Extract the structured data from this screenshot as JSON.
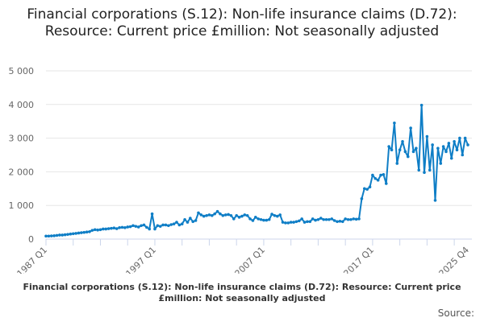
{
  "chart_data": {
    "type": "line",
    "title": "Financial corporations (S.12): Non-life insurance claims (D.72): Resource: Current price £million: Not seasonally adjusted",
    "xlabel": "Financial corporations (S.12): Non-life insurance claims (D.72): Resource: Current price £million: Not seasonally adjusted",
    "source_label": "Source:",
    "start_year": 1987,
    "x_tick_labels": [
      "1987 Q1",
      "1997 Q1",
      "2007 Q1",
      "2017 Q1",
      "2025 Q4"
    ],
    "y_ticks": [
      0,
      1000,
      2000,
      3000,
      4000,
      5000
    ],
    "y_tick_labels": [
      "0",
      "1 000",
      "2 000",
      "3 000",
      "4 000",
      "5 000"
    ],
    "ylim": [
      0,
      5000
    ],
    "grid": true,
    "color": "#0f7ec6",
    "values": [
      90,
      90,
      95,
      100,
      110,
      120,
      120,
      130,
      140,
      150,
      160,
      170,
      180,
      190,
      200,
      210,
      220,
      260,
      280,
      270,
      280,
      300,
      300,
      310,
      320,
      330,
      310,
      340,
      350,
      340,
      360,
      370,
      400,
      380,
      360,
      400,
      420,
      350,
      300,
      750,
      300,
      400,
      380,
      420,
      420,
      400,
      430,
      450,
      500,
      420,
      450,
      580,
      500,
      620,
      520,
      550,
      780,
      720,
      680,
      700,
      720,
      700,
      750,
      820,
      750,
      700,
      720,
      730,
      700,
      600,
      700,
      650,
      680,
      720,
      700,
      600,
      550,
      650,
      600,
      580,
      560,
      560,
      580,
      740,
      700,
      680,
      720,
      500,
      480,
      480,
      500,
      500,
      520,
      540,
      600,
      500,
      520,
      520,
      600,
      560,
      580,
      620,
      580,
      580,
      580,
      600,
      550,
      520,
      530,
      520,
      600,
      580,
      580,
      600,
      590,
      600,
      1200,
      1500,
      1480,
      1550,
      1900,
      1800,
      1750,
      1900,
      1920,
      1650,
      2750,
      2650,
      3450,
      2250,
      2650,
      2900,
      2600,
      2450,
      3300,
      2600,
      2700,
      2050,
      3980,
      1980,
      3050,
      2050,
      2800,
      1150,
      2700,
      2250,
      2750,
      2600,
      2850,
      2400,
      2900,
      2650,
      3000,
      2500,
      3000,
      2800
    ]
  }
}
